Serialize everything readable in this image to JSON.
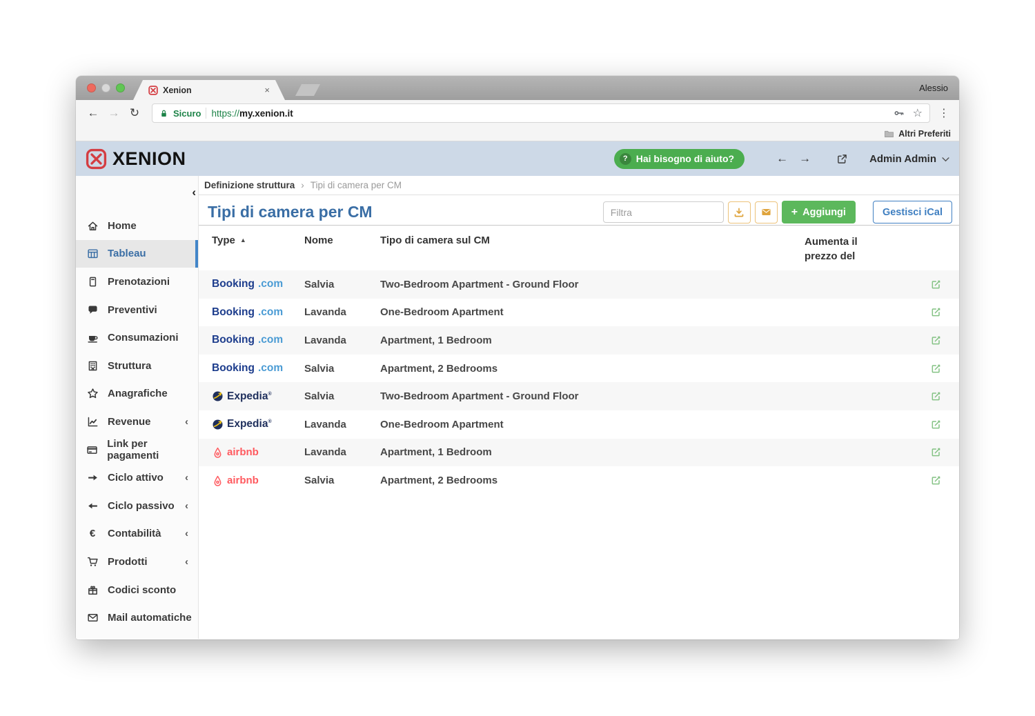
{
  "browser": {
    "user": "Alessio",
    "tab": {
      "title": "Xenion"
    },
    "url": {
      "security_label": "Sicuro",
      "scheme": "https://",
      "host": "my.xenion.it"
    },
    "bookmarks_label": "Altri Preferiti"
  },
  "icons": {
    "back": "←",
    "forward": "→",
    "reload": "↻",
    "menu": "⋮",
    "bookmark_star": "☆",
    "tab_close": "×",
    "collapse": "‹",
    "item_chevron": "‹",
    "breadcrumb_sep": "›",
    "sort_asc": "▲",
    "plus": "+",
    "help": "?",
    "euro": "€",
    "arrow_left": "←",
    "arrow_right": "→"
  },
  "app_header": {
    "logo_text": "XENION",
    "help_label": "Hai bisogno di aiuto?",
    "user_menu": "Admin Admin"
  },
  "sidebar": {
    "items": [
      {
        "key": "home",
        "icon": "home-icon",
        "label": "Home"
      },
      {
        "key": "tableau",
        "icon": "tableau-icon",
        "label": "Tableau",
        "active": true
      },
      {
        "key": "prenotazioni",
        "icon": "booklet-icon",
        "label": "Prenotazioni"
      },
      {
        "key": "preventivi",
        "icon": "chat-icon",
        "label": "Preventivi"
      },
      {
        "key": "consumazioni",
        "icon": "cup-icon",
        "label": "Consumazioni"
      },
      {
        "key": "struttura",
        "icon": "building-icon",
        "label": "Struttura"
      },
      {
        "key": "anagrafiche",
        "icon": "star-icon",
        "label": "Anagrafiche"
      },
      {
        "key": "revenue",
        "icon": "chart-icon",
        "label": "Revenue",
        "expandable": true
      },
      {
        "key": "link-pagamenti",
        "icon": "card-icon",
        "label": "Link per pagamenti"
      },
      {
        "key": "ciclo-attivo",
        "icon": "arrow-right-icon",
        "label": "Ciclo attivo",
        "expandable": true
      },
      {
        "key": "ciclo-passivo",
        "icon": "arrow-left-icon",
        "label": "Ciclo passivo",
        "expandable": true
      },
      {
        "key": "contabilita",
        "icon": "euro-icon",
        "label": "Contabilità",
        "expandable": true
      },
      {
        "key": "prodotti",
        "icon": "cart-icon",
        "label": "Prodotti",
        "expandable": true
      },
      {
        "key": "codici-sconto",
        "icon": "gift-icon",
        "label": "Codici sconto"
      },
      {
        "key": "mail-automatiche",
        "icon": "envelope-icon",
        "label": "Mail automatiche"
      }
    ]
  },
  "breadcrumb": {
    "section": "Definizione struttura",
    "current": "Tipi di camera per CM"
  },
  "page": {
    "title": "Tipi di camera per CM",
    "filter_placeholder": "Filtra",
    "add_label": "Aggiungi",
    "ical_label": "Gestisci iCal"
  },
  "table": {
    "columns": [
      "Type",
      "Nome",
      "Tipo di camera sul CM",
      "Aumenta il prezzo del"
    ],
    "rows": [
      {
        "channel": "booking",
        "name": "Salvia",
        "room_type": "Two-Bedroom Apartment - Ground Floor"
      },
      {
        "channel": "booking",
        "name": "Lavanda",
        "room_type": "One-Bedroom Apartment"
      },
      {
        "channel": "booking",
        "name": "Lavanda",
        "room_type": "Apartment, 1 Bedroom"
      },
      {
        "channel": "booking",
        "name": "Salvia",
        "room_type": "Apartment, 2 Bedrooms"
      },
      {
        "channel": "expedia",
        "name": "Salvia",
        "room_type": "Two-Bedroom Apartment - Ground Floor"
      },
      {
        "channel": "expedia",
        "name": "Lavanda",
        "room_type": "One-Bedroom Apartment"
      },
      {
        "channel": "airbnb",
        "name": "Lavanda",
        "room_type": "Apartment, 1 Bedroom"
      },
      {
        "channel": "airbnb",
        "name": "Salvia",
        "room_type": "Apartment, 2 Bedrooms"
      }
    ]
  },
  "channels": {
    "booking": {
      "name": "Booking",
      "tld": ".com"
    },
    "expedia": {
      "name": "Expedia",
      "reg": "®"
    },
    "airbnb": {
      "name": "airbnb"
    }
  },
  "colors": {
    "header_blue": "#cdd9e7",
    "accent_blue": "#3a6ea5",
    "help_green": "#4bad4f",
    "add_green": "#5cb85c",
    "ical_blue": "#3f7fc1",
    "orange": "#dfa43d",
    "edit_green": "#84c284",
    "booking_dark": "#1c3c8c",
    "booking_light": "#4a9bd4",
    "expedia_navy": "#1f2f5c",
    "expedia_yellow": "#f2c413",
    "airbnb_coral": "#ff5a5f",
    "traffic_red": "#ee6a5e",
    "traffic_gray": "#d8d8d8",
    "traffic_green": "#61c654"
  }
}
